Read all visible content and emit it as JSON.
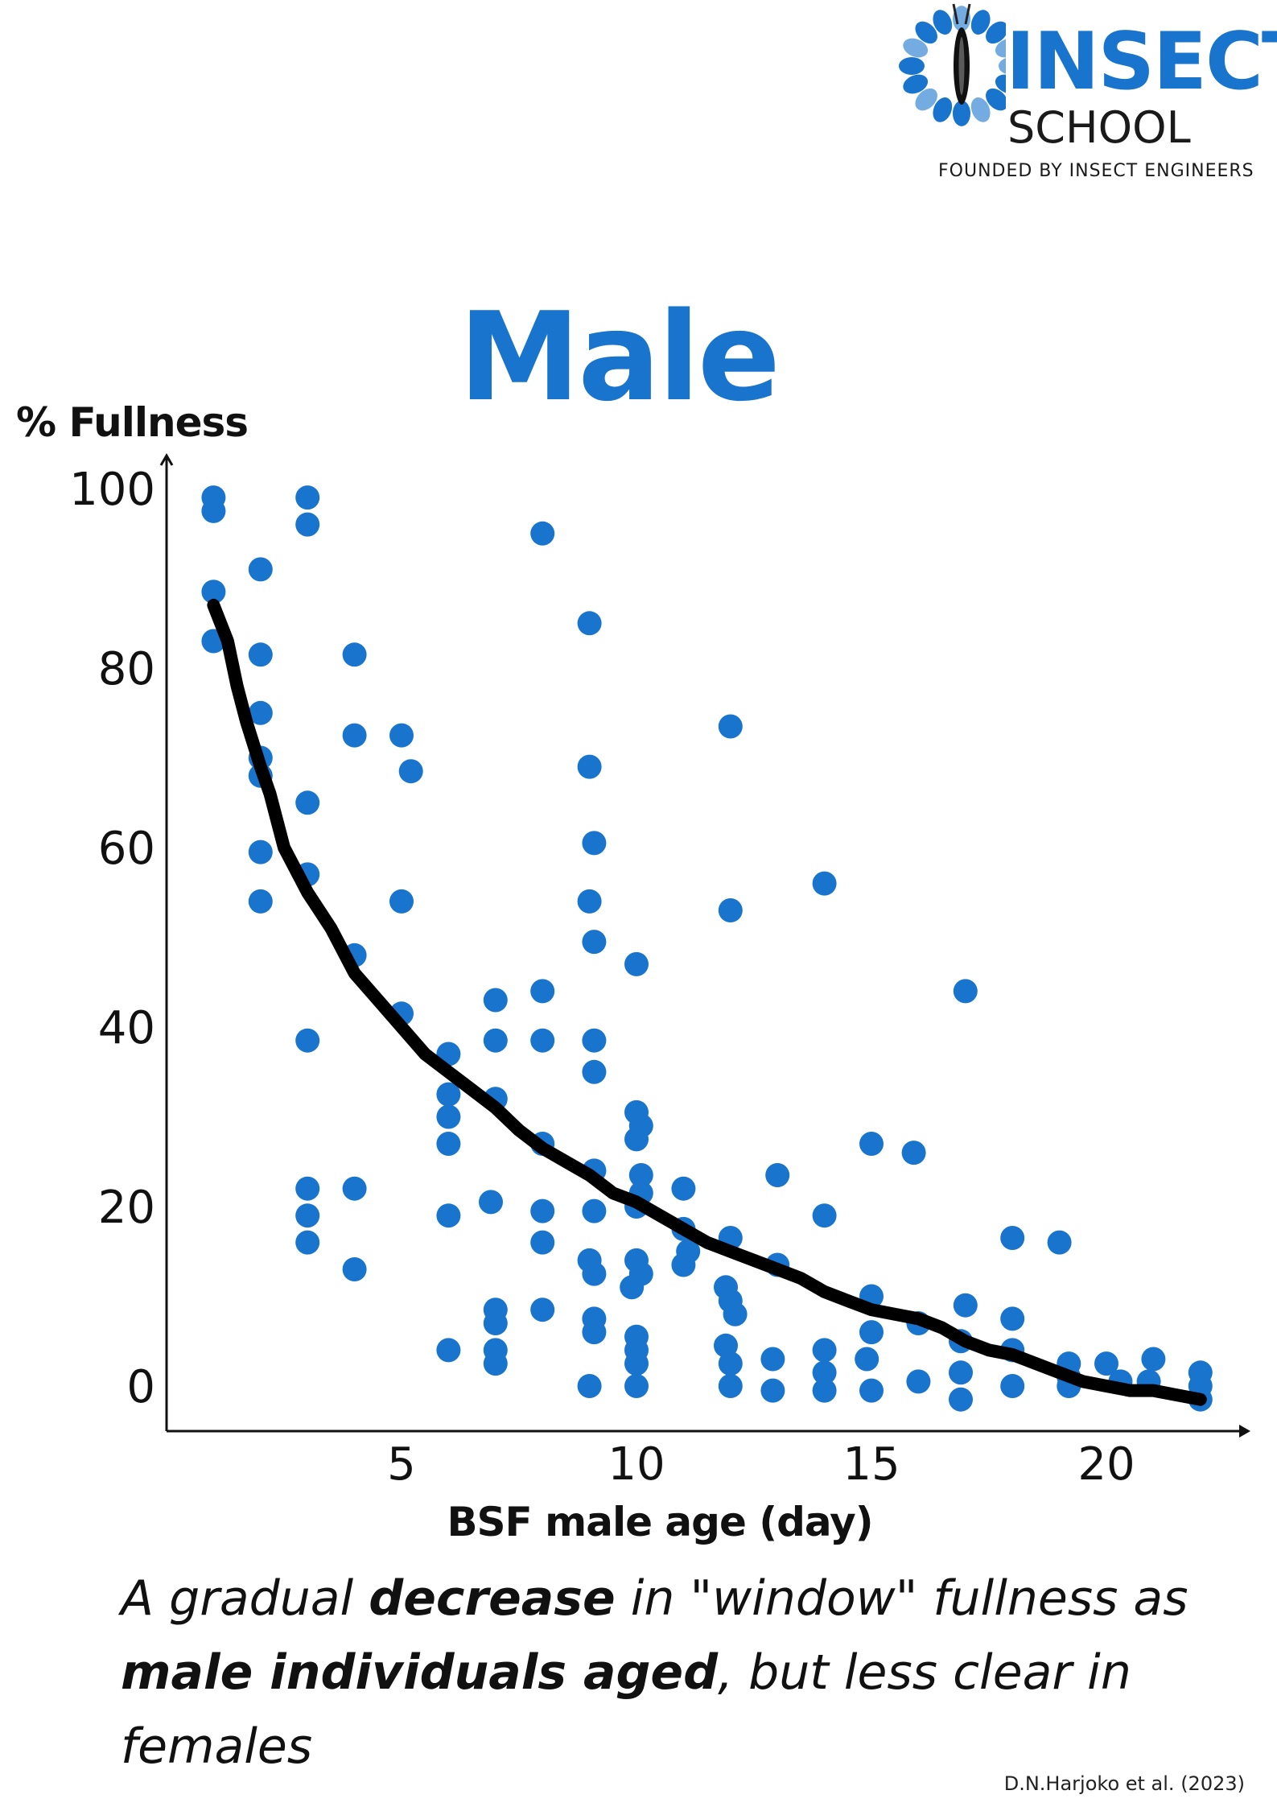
{
  "logo": {
    "word": "INSECT",
    "sub": "SCHOOL",
    "tagline": "FOUNDED BY INSECT ENGINEERS"
  },
  "caption": {
    "p1": "A gradual ",
    "b1": "decrease",
    "p2": " in \"window\" fullness as ",
    "b2": "male individuals aged",
    "p3": ", but less clear in females"
  },
  "citation": "D.N.Harjoko et al. (2023)",
  "colors": {
    "points": "#1874cd",
    "trend": "#000000",
    "title": "#1874cd"
  },
  "chart_data": {
    "type": "scatter",
    "title": "Male",
    "xlabel": "BSF male age (day)",
    "ylabel": "% Fullness",
    "xlim": [
      0,
      22.7
    ],
    "ylim": [
      -5,
      102
    ],
    "xticks": [
      5,
      10,
      15,
      20
    ],
    "yticks": [
      0,
      20,
      40,
      60,
      80,
      100
    ],
    "grid": false,
    "series": [
      {
        "points": [
          [
            1,
            99
          ],
          [
            1,
            97.5
          ],
          [
            1,
            88.5
          ],
          [
            1,
            83
          ],
          [
            2,
            91
          ],
          [
            2,
            81.5
          ],
          [
            2,
            75
          ],
          [
            2,
            70
          ],
          [
            2,
            68
          ],
          [
            2,
            59.5
          ],
          [
            2,
            54
          ],
          [
            3,
            99
          ],
          [
            3,
            96
          ],
          [
            3,
            65
          ],
          [
            3,
            57
          ],
          [
            3,
            38.5
          ],
          [
            3,
            22
          ],
          [
            3,
            19
          ],
          [
            3,
            16
          ],
          [
            4,
            81.5
          ],
          [
            4,
            72.5
          ],
          [
            4,
            48
          ],
          [
            4,
            22
          ],
          [
            4,
            13
          ],
          [
            5,
            72.5
          ],
          [
            5.2,
            68.5
          ],
          [
            5,
            54
          ],
          [
            5,
            41.5
          ],
          [
            6,
            37
          ],
          [
            6,
            32.5
          ],
          [
            6,
            30
          ],
          [
            6,
            27
          ],
          [
            6,
            19
          ],
          [
            6,
            4
          ],
          [
            6.9,
            20.5
          ],
          [
            7,
            43
          ],
          [
            7,
            38.5
          ],
          [
            7,
            32
          ],
          [
            7,
            8.5
          ],
          [
            7,
            7
          ],
          [
            7,
            4
          ],
          [
            7,
            2.5
          ],
          [
            8,
            95
          ],
          [
            8,
            44
          ],
          [
            8,
            38.5
          ],
          [
            8,
            27
          ],
          [
            8,
            19.5
          ],
          [
            8,
            16
          ],
          [
            8,
            8.5
          ],
          [
            9,
            85
          ],
          [
            9,
            69
          ],
          [
            9.1,
            60.5
          ],
          [
            9,
            54
          ],
          [
            9.1,
            49.5
          ],
          [
            9.1,
            38.5
          ],
          [
            9.1,
            35
          ],
          [
            9.1,
            24
          ],
          [
            9.1,
            19.5
          ],
          [
            9,
            14
          ],
          [
            9.1,
            12.5
          ],
          [
            9.1,
            7.5
          ],
          [
            9.1,
            6
          ],
          [
            9,
            0
          ],
          [
            10,
            47
          ],
          [
            10,
            30.5
          ],
          [
            10.1,
            29
          ],
          [
            10,
            27.5
          ],
          [
            10.1,
            23.5
          ],
          [
            10.1,
            21.5
          ],
          [
            10,
            20
          ],
          [
            10,
            14
          ],
          [
            10.1,
            12.5
          ],
          [
            9.9,
            11
          ],
          [
            10,
            5.5
          ],
          [
            10,
            4
          ],
          [
            10,
            2.5
          ],
          [
            10,
            0
          ],
          [
            11,
            22
          ],
          [
            11,
            17.5
          ],
          [
            11.1,
            15
          ],
          [
            11,
            13.5
          ],
          [
            12,
            73.5
          ],
          [
            12,
            53
          ],
          [
            12,
            16.5
          ],
          [
            11.9,
            11
          ],
          [
            12,
            9.5
          ],
          [
            12.1,
            8
          ],
          [
            11.9,
            4.5
          ],
          [
            12,
            2.5
          ],
          [
            12,
            0
          ],
          [
            13,
            23.5
          ],
          [
            13,
            13.5
          ],
          [
            12.9,
            3
          ],
          [
            12.9,
            -0.5
          ],
          [
            14,
            56
          ],
          [
            14,
            19
          ],
          [
            14,
            4
          ],
          [
            14,
            1.5
          ],
          [
            14,
            -0.5
          ],
          [
            15,
            27
          ],
          [
            15,
            10
          ],
          [
            15,
            6
          ],
          [
            14.9,
            3
          ],
          [
            15,
            -0.5
          ],
          [
            15.9,
            26
          ],
          [
            16,
            7
          ],
          [
            16,
            0.5
          ],
          [
            17,
            44
          ],
          [
            17,
            9
          ],
          [
            16.9,
            5
          ],
          [
            16.9,
            1.5
          ],
          [
            16.9,
            -1.5
          ],
          [
            18,
            16.5
          ],
          [
            18,
            7.5
          ],
          [
            18,
            4
          ],
          [
            18,
            0
          ],
          [
            19,
            16
          ],
          [
            19.2,
            2.5
          ],
          [
            19.2,
            1
          ],
          [
            19.2,
            0
          ],
          [
            20,
            2.5
          ],
          [
            20.3,
            0.5
          ],
          [
            21,
            3
          ],
          [
            20.9,
            0.5
          ],
          [
            22,
            1.5
          ],
          [
            22,
            0
          ],
          [
            22,
            -1.5
          ]
        ]
      }
    ],
    "trend_line": [
      [
        1,
        87
      ],
      [
        1.3,
        83
      ],
      [
        1.5,
        78
      ],
      [
        1.7,
        74
      ],
      [
        2,
        69
      ],
      [
        2.2,
        66
      ],
      [
        2.5,
        60
      ],
      [
        3,
        55
      ],
      [
        3.5,
        51
      ],
      [
        4,
        46
      ],
      [
        4.5,
        43
      ],
      [
        5,
        40
      ],
      [
        5.5,
        37
      ],
      [
        6,
        35
      ],
      [
        6.5,
        33
      ],
      [
        7,
        31
      ],
      [
        7.5,
        28.5
      ],
      [
        8,
        26.5
      ],
      [
        8.5,
        25
      ],
      [
        9,
        23.5
      ],
      [
        9.5,
        21.5
      ],
      [
        10,
        20.5
      ],
      [
        10.5,
        19
      ],
      [
        11,
        17.5
      ],
      [
        11.5,
        16
      ],
      [
        12,
        15
      ],
      [
        12.5,
        14
      ],
      [
        13,
        13
      ],
      [
        13.5,
        12
      ],
      [
        14,
        10.5
      ],
      [
        14.5,
        9.5
      ],
      [
        15,
        8.5
      ],
      [
        15.5,
        8
      ],
      [
        16,
        7.5
      ],
      [
        16.5,
        6.5
      ],
      [
        17,
        5
      ],
      [
        17.5,
        4
      ],
      [
        18,
        3.5
      ],
      [
        18.5,
        2.5
      ],
      [
        19,
        1.5
      ],
      [
        19.5,
        0.5
      ],
      [
        20,
        0
      ],
      [
        20.5,
        -0.5
      ],
      [
        21,
        -0.5
      ],
      [
        21.5,
        -1
      ],
      [
        22,
        -1.5
      ]
    ]
  }
}
